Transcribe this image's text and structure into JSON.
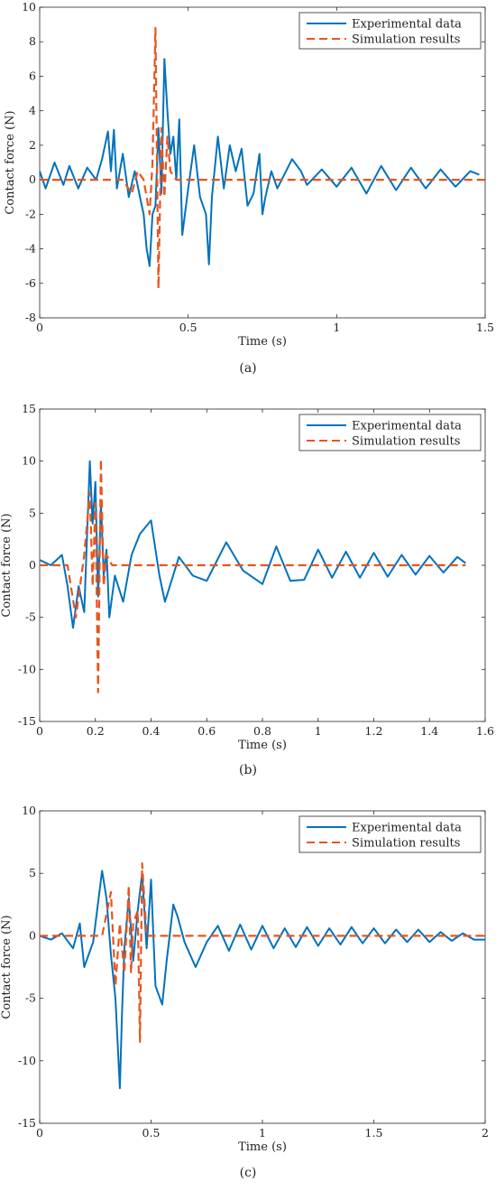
{
  "colors": {
    "experimental": "#0072BD",
    "simulation": "#E8551F",
    "axis": "#262626"
  },
  "panels": [
    {
      "caption": "(a)",
      "xlabel": "Time (s)",
      "ylabel": "Contact force (N)",
      "xticks": [
        "0",
        "0.5",
        "1",
        "1.5"
      ],
      "yticks": [
        "-8",
        "-6",
        "-4",
        "-2",
        "0",
        "2",
        "4",
        "6",
        "8",
        "10"
      ],
      "legend": [
        "Experimental data",
        "Simulation results"
      ]
    },
    {
      "caption": "(b)",
      "xlabel": "Time (s)",
      "ylabel": "Contact force (N)",
      "xticks": [
        "0",
        "0.2",
        "0.4",
        "0.6",
        "0.8",
        "1",
        "1.2",
        "1.4",
        "1.6"
      ],
      "yticks": [
        "-15",
        "-10",
        "-5",
        "0",
        "5",
        "10",
        "15"
      ],
      "legend": [
        "Experimental data",
        "Simulation results"
      ]
    },
    {
      "caption": "(c)",
      "xlabel": "Time (s)",
      "ylabel": "Contact force (N)",
      "xticks": [
        "0",
        "0.5",
        "1",
        "1.5",
        "2"
      ],
      "yticks": [
        "-15",
        "-10",
        "-5",
        "0",
        "5",
        "10"
      ],
      "legend": [
        "Experimental data",
        "Simulation results"
      ]
    }
  ],
  "chart_data": [
    {
      "type": "line",
      "xlabel": "Time (s)",
      "ylabel": "Contact force (N)",
      "xlim": [
        0,
        1.5
      ],
      "ylim": [
        -8,
        10
      ],
      "legend_position": "top-right",
      "series": [
        {
          "name": "Experimental data",
          "style": "solid",
          "x": [
            0,
            0.02,
            0.05,
            0.08,
            0.1,
            0.13,
            0.16,
            0.19,
            0.21,
            0.23,
            0.24,
            0.25,
            0.26,
            0.28,
            0.3,
            0.32,
            0.34,
            0.35,
            0.36,
            0.37,
            0.38,
            0.39,
            0.4,
            0.41,
            0.42,
            0.43,
            0.44,
            0.45,
            0.46,
            0.47,
            0.48,
            0.5,
            0.52,
            0.54,
            0.56,
            0.57,
            0.58,
            0.6,
            0.62,
            0.64,
            0.66,
            0.68,
            0.7,
            0.72,
            0.74,
            0.75,
            0.76,
            0.78,
            0.8,
            0.85,
            0.88,
            0.9,
            0.95,
            1,
            1.05,
            1.1,
            1.15,
            1.2,
            1.25,
            1.3,
            1.35,
            1.4,
            1.45,
            1.48
          ],
          "y": [
            0.5,
            -0.5,
            1,
            -0.3,
            0.8,
            -0.5,
            0.7,
            0,
            1.2,
            2.8,
            0.5,
            2.9,
            -0.5,
            1.5,
            -1,
            0.5,
            -1.2,
            -2,
            -4,
            -5,
            -2,
            -1.5,
            3,
            -0.8,
            7,
            4,
            1.5,
            2.5,
            0,
            3.5,
            -3.2,
            -0.5,
            2,
            -1,
            -2,
            -4.9,
            -1,
            2.5,
            -0.5,
            2,
            0.5,
            1.8,
            -1.5,
            -0.8,
            1.5,
            -2,
            -1,
            0.5,
            -0.5,
            1.2,
            0.5,
            -0.3,
            0.6,
            -0.4,
            0.7,
            -0.8,
            0.8,
            -0.6,
            0.7,
            -0.5,
            0.6,
            -0.4,
            0.5,
            0.3
          ]
        },
        {
          "name": "Simulation results",
          "style": "dashed",
          "x": [
            0,
            0.28,
            0.31,
            0.33,
            0.35,
            0.37,
            0.38,
            0.39,
            0.4,
            0.41,
            0.42,
            0.43,
            0.44,
            0.46,
            1.5
          ],
          "y": [
            0,
            0,
            -0.8,
            0.5,
            0,
            -2,
            1,
            8.8,
            -6.3,
            3,
            -1,
            2.5,
            0.5,
            0,
            0
          ]
        }
      ]
    },
    {
      "type": "line",
      "xlabel": "Time (s)",
      "ylabel": "Contact force (N)",
      "xlim": [
        0,
        1.6
      ],
      "ylim": [
        -15,
        15
      ],
      "legend_position": "top-right",
      "series": [
        {
          "name": "Experimental data",
          "style": "solid",
          "x": [
            0,
            0.04,
            0.08,
            0.1,
            0.12,
            0.14,
            0.16,
            0.18,
            0.19,
            0.2,
            0.21,
            0.22,
            0.23,
            0.24,
            0.25,
            0.27,
            0.3,
            0.33,
            0.36,
            0.4,
            0.43,
            0.45,
            0.5,
            0.55,
            0.6,
            0.67,
            0.73,
            0.8,
            0.85,
            0.9,
            0.95,
            1,
            1.05,
            1.1,
            1.15,
            1.2,
            1.25,
            1.3,
            1.35,
            1.4,
            1.45,
            1.5,
            1.53
          ],
          "y": [
            0.5,
            0,
            1,
            -2,
            -6,
            -2,
            -4.5,
            10,
            4,
            8,
            -3,
            6,
            -1,
            1.5,
            -5,
            -1,
            -3.5,
            1,
            3,
            4.3,
            -1,
            -3.5,
            0.8,
            -1,
            -1.5,
            2.2,
            -0.5,
            -1.8,
            1.8,
            -1.5,
            -1.4,
            1.5,
            -1.2,
            1.3,
            -1.2,
            1.2,
            -1.1,
            1,
            -0.9,
            0.9,
            -0.7,
            0.8,
            0.2
          ]
        },
        {
          "name": "Simulation results",
          "style": "dashed",
          "x": [
            0,
            0.1,
            0.13,
            0.16,
            0.18,
            0.19,
            0.2,
            0.21,
            0.22,
            0.23,
            0.24,
            0.26,
            1.53
          ],
          "y": [
            0,
            0,
            -5,
            1,
            7,
            -2,
            6,
            -12.2,
            10.2,
            -2,
            1,
            0,
            0
          ]
        }
      ]
    },
    {
      "type": "line",
      "xlabel": "Time (s)",
      "ylabel": "Contact force (N)",
      "xlim": [
        0,
        2
      ],
      "ylim": [
        -15,
        10
      ],
      "legend_position": "top-right",
      "series": [
        {
          "name": "Experimental data",
          "style": "solid",
          "x": [
            0,
            0.05,
            0.1,
            0.15,
            0.18,
            0.2,
            0.24,
            0.28,
            0.3,
            0.32,
            0.34,
            0.36,
            0.37,
            0.38,
            0.4,
            0.42,
            0.44,
            0.46,
            0.48,
            0.5,
            0.52,
            0.55,
            0.57,
            0.6,
            0.62,
            0.65,
            0.7,
            0.75,
            0.8,
            0.85,
            0.9,
            0.95,
            1,
            1.05,
            1.1,
            1.15,
            1.2,
            1.25,
            1.3,
            1.35,
            1.4,
            1.45,
            1.5,
            1.55,
            1.6,
            1.65,
            1.7,
            1.75,
            1.8,
            1.85,
            1.9,
            1.95,
            2
          ],
          "y": [
            0,
            -0.3,
            0.2,
            -1,
            1,
            -2.5,
            -0.5,
            5.2,
            3,
            -1.5,
            -5,
            -12.2,
            -6,
            -1,
            3,
            -2,
            2,
            5,
            -1,
            4.5,
            -4,
            -5.5,
            -2,
            2.5,
            1.5,
            -0.5,
            -2.5,
            -0.5,
            0.8,
            -1.2,
            0.9,
            -1.1,
            0.8,
            -1,
            0.6,
            -0.9,
            0.7,
            -0.8,
            0.6,
            -0.7,
            0.7,
            -0.6,
            0.6,
            -0.6,
            0.5,
            -0.5,
            0.5,
            -0.5,
            0.3,
            -0.4,
            0.2,
            -0.3,
            -0.3
          ]
        },
        {
          "name": "Simulation results",
          "style": "dashed",
          "x": [
            0,
            0.28,
            0.32,
            0.34,
            0.36,
            0.38,
            0.4,
            0.41,
            0.42,
            0.44,
            0.45,
            0.46,
            0.48,
            2
          ],
          "y": [
            0,
            0,
            3.5,
            -4,
            1,
            -3,
            4,
            -3,
            1,
            2,
            -8.5,
            5.8,
            0,
            0
          ]
        }
      ]
    }
  ]
}
